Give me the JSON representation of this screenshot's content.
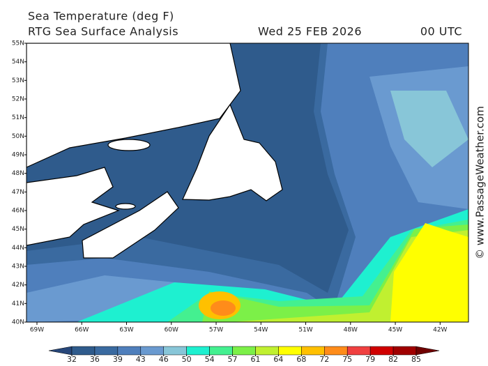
{
  "title": "Sea Temperature (deg F)",
  "subtitle": "RTG Sea Surface Analysis",
  "date": "Wed 25 FEB 2026",
  "time": "00 UTC",
  "watermark": "© www.PassageWeather.com",
  "map": {
    "xlim": [
      -69.7,
      -40.1
    ],
    "ylim": [
      40,
      55
    ],
    "xticks": [
      {
        "value": -69,
        "label": "69W"
      },
      {
        "value": -66,
        "label": "66W"
      },
      {
        "value": -63,
        "label": "63W"
      },
      {
        "value": -60,
        "label": "60W"
      },
      {
        "value": -57,
        "label": "57W"
      },
      {
        "value": -54,
        "label": "54W"
      },
      {
        "value": -51,
        "label": "51W"
      },
      {
        "value": -48,
        "label": "48W"
      },
      {
        "value": -45,
        "label": "45W"
      },
      {
        "value": -42,
        "label": "42W"
      }
    ],
    "yticks": [
      {
        "value": 40,
        "label": "40N"
      },
      {
        "value": 41,
        "label": "41N"
      },
      {
        "value": 42,
        "label": "42N"
      },
      {
        "value": 43,
        "label": "43N"
      },
      {
        "value": 44,
        "label": "44N"
      },
      {
        "value": 45,
        "label": "45N"
      },
      {
        "value": 46,
        "label": "46N"
      },
      {
        "value": 47,
        "label": "47N"
      },
      {
        "value": 48,
        "label": "48N"
      },
      {
        "value": 49,
        "label": "49N"
      },
      {
        "value": 50,
        "label": "50N"
      },
      {
        "value": 51,
        "label": "51N"
      },
      {
        "value": 52,
        "label": "52N"
      },
      {
        "value": 53,
        "label": "53N"
      },
      {
        "value": 54,
        "label": "54N"
      },
      {
        "value": 55,
        "label": "55N"
      }
    ]
  },
  "colorbar": {
    "ticks": [
      32,
      36,
      39,
      43,
      46,
      50,
      54,
      57,
      61,
      64,
      68,
      72,
      75,
      79,
      82,
      85
    ],
    "colors": [
      "#27477a",
      "#2f5b8c",
      "#3a6aa0",
      "#4f7fbc",
      "#6a9ad0",
      "#88c6d8",
      "#1ef0d0",
      "#44f090",
      "#7cf048",
      "#c0f030",
      "#ffff00",
      "#ffc000",
      "#ff8c1a",
      "#f04040",
      "#d00000",
      "#a00000",
      "#700000"
    ]
  }
}
